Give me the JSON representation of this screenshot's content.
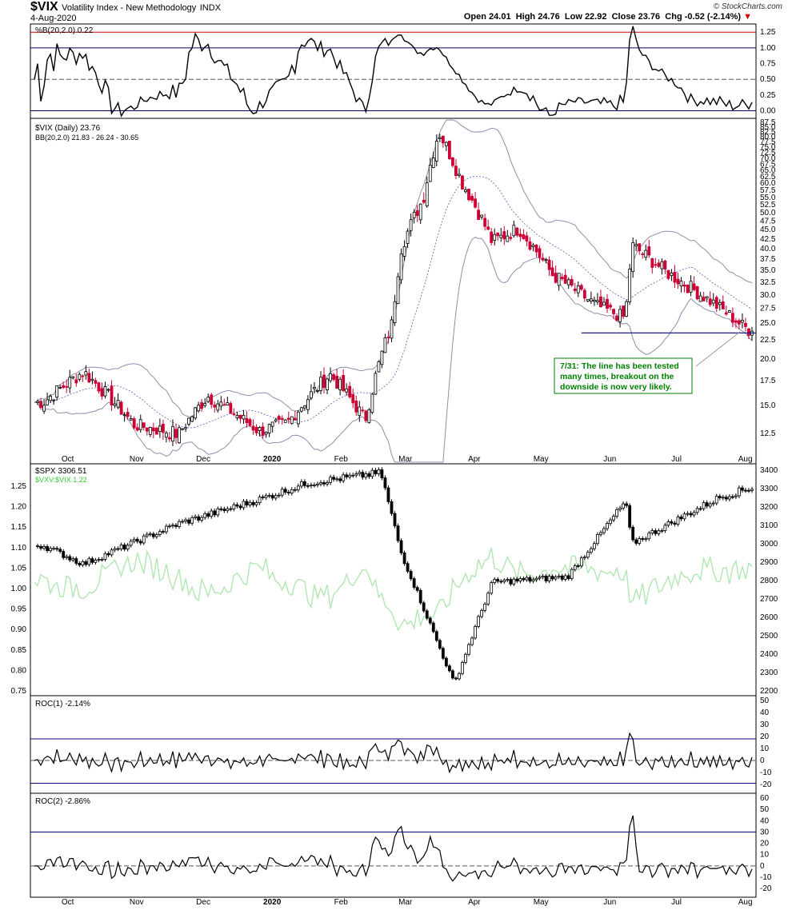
{
  "header": {
    "symbol": "$VIX",
    "name": "Volatility Index - New Methodology",
    "exchange": "INDX",
    "date": "4-Aug-2020",
    "open": "24.01",
    "high": "24.76",
    "low": "22.92",
    "close": "23.76",
    "chg": "-0.52 (-2.14%)",
    "open_label": "Open",
    "high_label": "High",
    "low_label": "Low",
    "close_label": "Close",
    "chg_label": "Chg",
    "brand": "© StockCharts.com"
  },
  "x_axis": {
    "labels": [
      "Oct",
      "Nov",
      "Dec",
      "2020",
      "Feb",
      "Mar",
      "Apr",
      "May",
      "Jun",
      "Jul",
      "Aug"
    ],
    "bold": "2020"
  },
  "panels": {
    "pctb": {
      "label": "%B(20,2.0) 0.22",
      "ticks": [
        "1.25",
        "1.00",
        "0.75",
        "0.50",
        "0.25",
        "0.00"
      ],
      "levels": [
        0,
        0.5,
        1,
        1.25
      ]
    },
    "vix": {
      "label": "$VIX (Daily) 23.76",
      "legend": "BB(20,2.0) 21.83 - 26.24 - 30.65",
      "ticks": [
        "87.5",
        "85.0",
        "82.5",
        "80.0",
        "77.5",
        "75.0",
        "72.5",
        "70.0",
        "67.5",
        "65.0",
        "62.5",
        "60.0",
        "57.5",
        "55.0",
        "52.5",
        "50.0",
        "47.5",
        "45.0",
        "42.5",
        "40.0",
        "37.5",
        "35.0",
        "32.5",
        "30.0",
        "27.5",
        "25.0",
        "22.5",
        "20.0",
        "17.5",
        "15.0",
        "12.5"
      ],
      "support": 23.5,
      "annotation": [
        "7/31: The line has been tested",
        "many times, breakout on the",
        "downside is now very likely."
      ]
    },
    "spx": {
      "label": "$SPX 3306.51",
      "legend": "$VXV:$VIX 1.22",
      "left_ticks": [
        "1.25",
        "1.20",
        "1.15",
        "1.10",
        "1.05",
        "1.00",
        "0.95",
        "0.90",
        "0.85",
        "0.80",
        "0.75"
      ],
      "right_ticks": [
        "3400",
        "3300",
        "3200",
        "3100",
        "3000",
        "2900",
        "2800",
        "2700",
        "2600",
        "2500",
        "2400",
        "2300",
        "2200"
      ]
    },
    "roc1": {
      "label": "ROC(1) -2.14%",
      "ticks": [
        "50",
        "40",
        "30",
        "20",
        "10",
        "0",
        "-10",
        "-20"
      ],
      "levels": [
        18,
        -19
      ]
    },
    "roc2": {
      "label": "ROC(2) -2.86%",
      "ticks": [
        "60",
        "50",
        "40",
        "30",
        "20",
        "10",
        "0",
        "-10",
        "-20"
      ],
      "levels": [
        30
      ]
    }
  },
  "chart_data": {
    "type": "line",
    "title": "$VIX Volatility Index - New Methodology",
    "x_range": [
      "2019-09-16",
      "2020-08-04"
    ],
    "series": [
      {
        "name": "$VIX close",
        "x": [
          "2019-09-20",
          "2019-10-08",
          "2019-10-31",
          "2019-11-20",
          "2019-12-03",
          "2019-12-26",
          "2020-01-08",
          "2020-01-27",
          "2020-02-12",
          "2020-02-24",
          "2020-02-28",
          "2020-03-09",
          "2020-03-16",
          "2020-03-26",
          "2020-04-09",
          "2020-04-21",
          "2020-05-06",
          "2020-05-26",
          "2020-06-08",
          "2020-06-11",
          "2020-06-26",
          "2020-07-14",
          "2020-07-31",
          "2020-08-04"
        ],
        "values": [
          15.3,
          18.5,
          13.2,
          12.5,
          15.9,
          12.7,
          13.4,
          18.2,
          13.7,
          25.0,
          40.1,
          54.5,
          82.7,
          61.0,
          41.7,
          45.4,
          34.1,
          28.0,
          25.8,
          40.8,
          34.7,
          29.5,
          24.5,
          23.76
        ]
      },
      {
        "name": "SPX close",
        "x": [
          "2019-09-20",
          "2019-10-08",
          "2019-11-20",
          "2019-12-26",
          "2020-01-17",
          "2020-02-19",
          "2020-02-28",
          "2020-03-23",
          "2020-04-09",
          "2020-05-13",
          "2020-06-08",
          "2020-06-11",
          "2020-07-20",
          "2020-08-04"
        ],
        "values": [
          2990,
          2890,
          3110,
          3240,
          3330,
          3386,
          2954,
          2237,
          2790,
          2820,
          3230,
          3002,
          3250,
          3306.51
        ]
      }
    ]
  },
  "colors": {
    "up": "#000000",
    "down": "#cc0033",
    "band": "#8d8db0",
    "ratio": "#b2e6b2",
    "support": "#00007f",
    "red_line": "#cc0000",
    "annot_text": "#007f00",
    "annot_border": "#007f00"
  }
}
